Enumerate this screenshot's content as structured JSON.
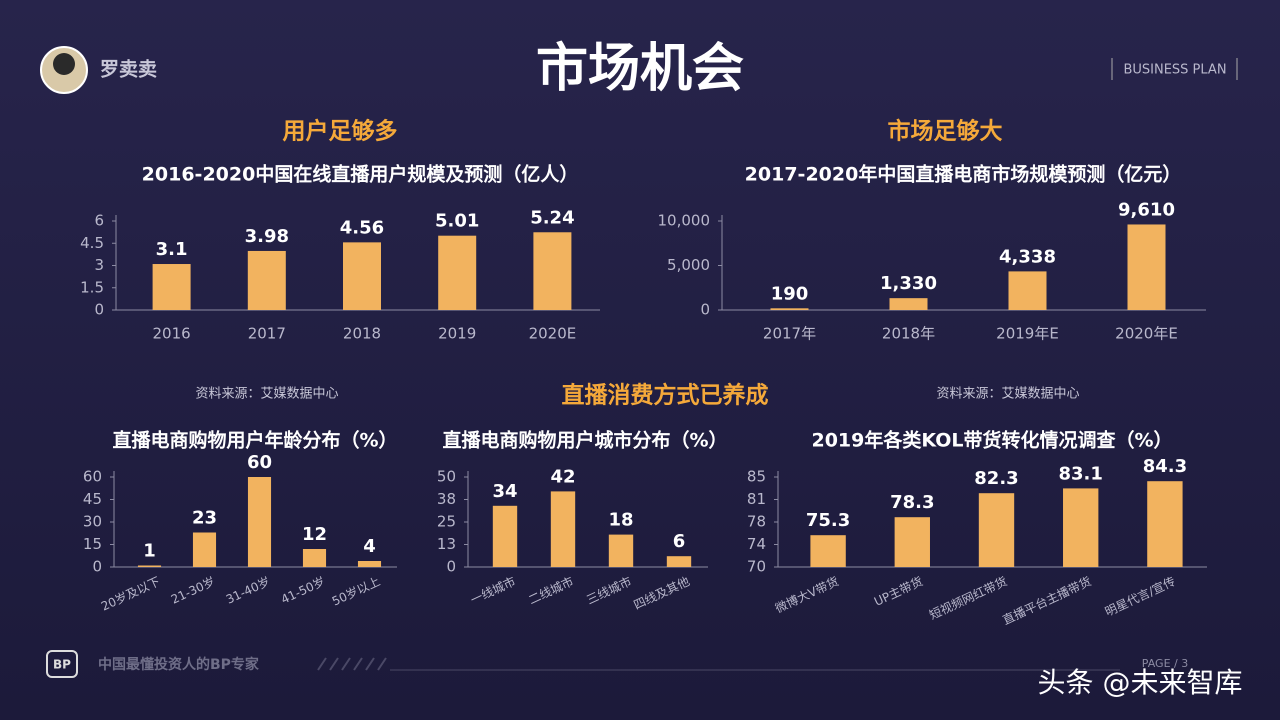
{
  "header": {
    "name": "罗卖卖",
    "title": "市场机会",
    "tag": "BUSINESS PLAN"
  },
  "sections": [
    "用户足够多",
    "市场足够大",
    "直播消费方式已养成"
  ],
  "sources": [
    "资料来源：艾媒数据中心",
    "资料来源：艾媒数据中心"
  ],
  "footer": {
    "slogan": "中国最懂投资人的BP专家",
    "page": "PAGE / 3",
    "watermark": "头条 @未来智库"
  },
  "chart_data": [
    {
      "type": "bar",
      "title": "2016-2020中国在线直播用户规模及预测（亿人）",
      "categories": [
        "2016",
        "2017",
        "2018",
        "2019",
        "2020E"
      ],
      "values": [
        3.1,
        3.98,
        4.56,
        5.01,
        5.24
      ],
      "color": "#f2b35f",
      "ylim": [
        0,
        6
      ],
      "yticks": [
        0,
        1.5,
        3,
        4.5,
        6
      ],
      "grid": false
    },
    {
      "type": "bar",
      "title": "2017-2020年中国直播电商市场规模预测（亿元）",
      "categories": [
        "2017年",
        "2018年",
        "2019年E",
        "2020年E"
      ],
      "values": [
        190,
        1330,
        4338,
        9610
      ],
      "value_labels": [
        "190",
        "1,330",
        "4,338",
        "9,610"
      ],
      "color": "#f2b35f",
      "ylim": [
        0,
        10000
      ],
      "yticks": [
        0,
        {
          "value": 5000,
          "label": "5,000"
        },
        {
          "value": 10000,
          "label": "10,000"
        }
      ],
      "grid": false
    },
    {
      "type": "bar",
      "title": "直播电商购物用户年龄分布（%）",
      "categories": [
        "20岁及以下",
        "21-30岁",
        "31-40岁",
        "41-50岁",
        "50岁以上"
      ],
      "values": [
        1,
        23,
        60,
        12,
        4
      ],
      "color": "#f2b35f",
      "ylim": [
        0,
        60
      ],
      "yticks": [
        0,
        15,
        30,
        45,
        60
      ],
      "grid": false
    },
    {
      "type": "bar",
      "title": "直播电商购物用户城市分布（%）",
      "categories": [
        "一线城市",
        "二线城市",
        "三线城市",
        "四线及其他"
      ],
      "values": [
        34,
        42,
        18,
        6
      ],
      "color": "#f2b35f",
      "ylim": [
        0,
        50
      ],
      "yticks": [
        0,
        {
          "value": 12.5,
          "label": "13"
        },
        25,
        {
          "value": 37.5,
          "label": "38"
        },
        50
      ],
      "grid": false
    },
    {
      "type": "bar",
      "title": "2019年各类KOL带货转化情况调查（%）",
      "categories": [
        "微博大V带货",
        "UP主带货",
        "短视频网红带货",
        "直播平台主播带货",
        "明星代言/宣传"
      ],
      "values": [
        75.3,
        78.3,
        82.3,
        83.1,
        84.3
      ],
      "color": "#f2b35f",
      "ylim": [
        70,
        85
      ],
      "yticks": [
        70,
        {
          "value": 73.75,
          "label": "74"
        },
        {
          "value": 77.5,
          "label": "78"
        },
        {
          "value": 81.25,
          "label": "81"
        },
        85
      ],
      "grid": false
    }
  ]
}
